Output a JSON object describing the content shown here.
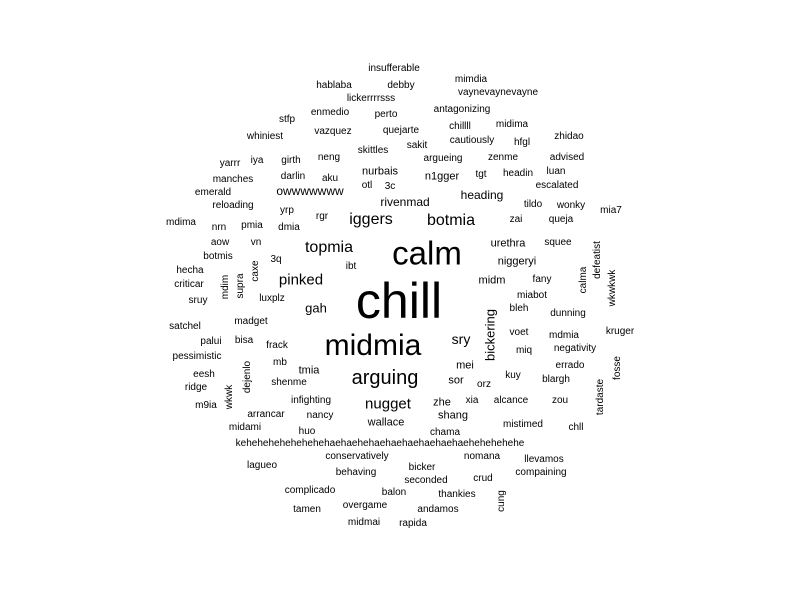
{
  "text_color": "#000000",
  "background": "#ffffff",
  "words": [
    {
      "text": "chill",
      "weight": 1.0
    },
    {
      "text": "calm",
      "weight": 0.5
    },
    {
      "text": "midmia",
      "weight": 0.45
    },
    {
      "text": "arguing",
      "weight": 0.3
    },
    {
      "text": "topmia",
      "weight": 0.22
    },
    {
      "text": "iggers",
      "weight": 0.22
    },
    {
      "text": "botmia",
      "weight": 0.22
    },
    {
      "text": "nugget",
      "weight": 0.22
    },
    {
      "text": "pinked",
      "weight": 0.2
    },
    {
      "text": "sry",
      "weight": 0.18
    },
    {
      "text": "gah",
      "weight": 0.17
    },
    {
      "text": "bickering",
      "weight": 0.17
    },
    {
      "text": "rivenmad",
      "weight": 0.14
    },
    {
      "text": "owwwwwww",
      "weight": 0.14
    },
    {
      "text": "heading",
      "weight": 0.13
    },
    {
      "text": "n1gger",
      "weight": 0.13
    },
    {
      "text": "niggeryi",
      "weight": 0.13
    },
    {
      "text": "urethra",
      "weight": 0.13
    },
    {
      "text": "midm",
      "weight": 0.12
    },
    {
      "text": "wallace",
      "weight": 0.13
    },
    {
      "text": "sor",
      "weight": 0.13
    },
    {
      "text": "mei",
      "weight": 0.13
    },
    {
      "text": "tmia",
      "weight": 0.13
    },
    {
      "text": "zhe",
      "weight": 0.13
    },
    {
      "text": "shang",
      "weight": 0.12
    },
    {
      "text": "nurbais",
      "weight": 0.12
    },
    {
      "text": "insufferable",
      "weight": 0.1
    },
    {
      "text": "mimdia",
      "weight": 0.1
    },
    {
      "text": "hablaba",
      "weight": 0.1
    },
    {
      "text": "debby",
      "weight": 0.1
    },
    {
      "text": "vaynevaynevayne",
      "weight": 0.1
    },
    {
      "text": "lickerrrrsss",
      "weight": 0.1
    },
    {
      "text": "enmedio",
      "weight": 0.1
    },
    {
      "text": "perto",
      "weight": 0.1
    },
    {
      "text": "antagonizing",
      "weight": 0.1
    },
    {
      "text": "stfp",
      "weight": 0.1
    },
    {
      "text": "vazquez",
      "weight": 0.1
    },
    {
      "text": "quejarte",
      "weight": 0.1
    },
    {
      "text": "chillll",
      "weight": 0.1
    },
    {
      "text": "midima",
      "weight": 0.1
    },
    {
      "text": "whiniest",
      "weight": 0.1
    },
    {
      "text": "sakit",
      "weight": 0.1
    },
    {
      "text": "cautiously",
      "weight": 0.1
    },
    {
      "text": "hfgl",
      "weight": 0.1
    },
    {
      "text": "zhidao",
      "weight": 0.1
    },
    {
      "text": "skittles",
      "weight": 0.1
    },
    {
      "text": "neng",
      "weight": 0.1
    },
    {
      "text": "argueing",
      "weight": 0.1
    },
    {
      "text": "zenme",
      "weight": 0.1
    },
    {
      "text": "advised",
      "weight": 0.1
    },
    {
      "text": "yarrr",
      "weight": 0.1
    },
    {
      "text": "iya",
      "weight": 0.1
    },
    {
      "text": "girth",
      "weight": 0.1
    },
    {
      "text": "tgt",
      "weight": 0.1
    },
    {
      "text": "headin",
      "weight": 0.1
    },
    {
      "text": "luan",
      "weight": 0.1
    },
    {
      "text": "manches",
      "weight": 0.1
    },
    {
      "text": "darlin",
      "weight": 0.1
    },
    {
      "text": "aku",
      "weight": 0.1
    },
    {
      "text": "otl",
      "weight": 0.1
    },
    {
      "text": "3c",
      "weight": 0.1
    },
    {
      "text": "escalated",
      "weight": 0.1
    },
    {
      "text": "emerald",
      "weight": 0.1
    },
    {
      "text": "reloading",
      "weight": 0.1
    },
    {
      "text": "tildo",
      "weight": 0.1
    },
    {
      "text": "wonky",
      "weight": 0.1
    },
    {
      "text": "yrp",
      "weight": 0.1
    },
    {
      "text": "mia7",
      "weight": 0.1
    },
    {
      "text": "mdima",
      "weight": 0.1
    },
    {
      "text": "rgr",
      "weight": 0.1
    },
    {
      "text": "zai",
      "weight": 0.1
    },
    {
      "text": "queja",
      "weight": 0.1
    },
    {
      "text": "nrn",
      "weight": 0.1
    },
    {
      "text": "pmia",
      "weight": 0.1
    },
    {
      "text": "dmia",
      "weight": 0.1
    },
    {
      "text": "aow",
      "weight": 0.1
    },
    {
      "text": "vn",
      "weight": 0.1
    },
    {
      "text": "squee",
      "weight": 0.1
    },
    {
      "text": "defeatist",
      "weight": 0.1
    },
    {
      "text": "botmis",
      "weight": 0.1
    },
    {
      "text": "3q",
      "weight": 0.1
    },
    {
      "text": "wkwkwk",
      "weight": 0.1
    },
    {
      "text": "hecha",
      "weight": 0.1
    },
    {
      "text": "caxe",
      "weight": 0.1
    },
    {
      "text": "ibt",
      "weight": 0.1
    },
    {
      "text": "calma",
      "weight": 0.1
    },
    {
      "text": "fany",
      "weight": 0.1
    },
    {
      "text": "criticar",
      "weight": 0.1
    },
    {
      "text": "mdim",
      "weight": 0.1
    },
    {
      "text": "supra",
      "weight": 0.1
    },
    {
      "text": "miabot",
      "weight": 0.1
    },
    {
      "text": "sruy",
      "weight": 0.1
    },
    {
      "text": "luxplz",
      "weight": 0.1
    },
    {
      "text": "bleh",
      "weight": 0.1
    },
    {
      "text": "dunning",
      "weight": 0.1
    },
    {
      "text": "madget",
      "weight": 0.1
    },
    {
      "text": "satchel",
      "weight": 0.1
    },
    {
      "text": "voet",
      "weight": 0.1
    },
    {
      "text": "kruger",
      "weight": 0.1
    },
    {
      "text": "mdmia",
      "weight": 0.1
    },
    {
      "text": "palui",
      "weight": 0.1
    },
    {
      "text": "bisa",
      "weight": 0.1
    },
    {
      "text": "frack",
      "weight": 0.1
    },
    {
      "text": "negativity",
      "weight": 0.1
    },
    {
      "text": "miq",
      "weight": 0.1
    },
    {
      "text": "pessimistic",
      "weight": 0.1
    },
    {
      "text": "mb",
      "weight": 0.1
    },
    {
      "text": "fosse",
      "weight": 0.1
    },
    {
      "text": "errado",
      "weight": 0.1
    },
    {
      "text": "eesh",
      "weight": 0.1
    },
    {
      "text": "dejenlo",
      "weight": 0.1
    },
    {
      "text": "kuy",
      "weight": 0.1
    },
    {
      "text": "blargh",
      "weight": 0.1
    },
    {
      "text": "ridge",
      "weight": 0.1
    },
    {
      "text": "shenme",
      "weight": 0.1
    },
    {
      "text": "orz",
      "weight": 0.1
    },
    {
      "text": "tardaste",
      "weight": 0.1
    },
    {
      "text": "wkwk",
      "weight": 0.1
    },
    {
      "text": "infighting",
      "weight": 0.1
    },
    {
      "text": "xia",
      "weight": 0.1
    },
    {
      "text": "alcance",
      "weight": 0.1
    },
    {
      "text": "zou",
      "weight": 0.1
    },
    {
      "text": "m9ia",
      "weight": 0.1
    },
    {
      "text": "arrancar",
      "weight": 0.1
    },
    {
      "text": "nancy",
      "weight": 0.1
    },
    {
      "text": "midami",
      "weight": 0.1
    },
    {
      "text": "huo",
      "weight": 0.1
    },
    {
      "text": "chama",
      "weight": 0.1
    },
    {
      "text": "mistimed",
      "weight": 0.1
    },
    {
      "text": "chll",
      "weight": 0.1
    },
    {
      "text": "kehehehehehehehehaehaehehaehaehaehaehaehaehehehehehe",
      "weight": 0.1
    },
    {
      "text": "conservatively",
      "weight": 0.1
    },
    {
      "text": "nomana",
      "weight": 0.1
    },
    {
      "text": "llevamos",
      "weight": 0.1
    },
    {
      "text": "lagueo",
      "weight": 0.1
    },
    {
      "text": "behaving",
      "weight": 0.1
    },
    {
      "text": "bicker",
      "weight": 0.1
    },
    {
      "text": "crud",
      "weight": 0.1
    },
    {
      "text": "compaining",
      "weight": 0.1
    },
    {
      "text": "seconded",
      "weight": 0.1
    },
    {
      "text": "complicado",
      "weight": 0.1
    },
    {
      "text": "balon",
      "weight": 0.1
    },
    {
      "text": "thankies",
      "weight": 0.1
    },
    {
      "text": "cung",
      "weight": 0.1
    },
    {
      "text": "overgame",
      "weight": 0.1
    },
    {
      "text": "tamen",
      "weight": 0.1
    },
    {
      "text": "andamos",
      "weight": 0.1
    },
    {
      "text": "midmai",
      "weight": 0.1
    },
    {
      "text": "rapida",
      "weight": 0.1
    }
  ]
}
